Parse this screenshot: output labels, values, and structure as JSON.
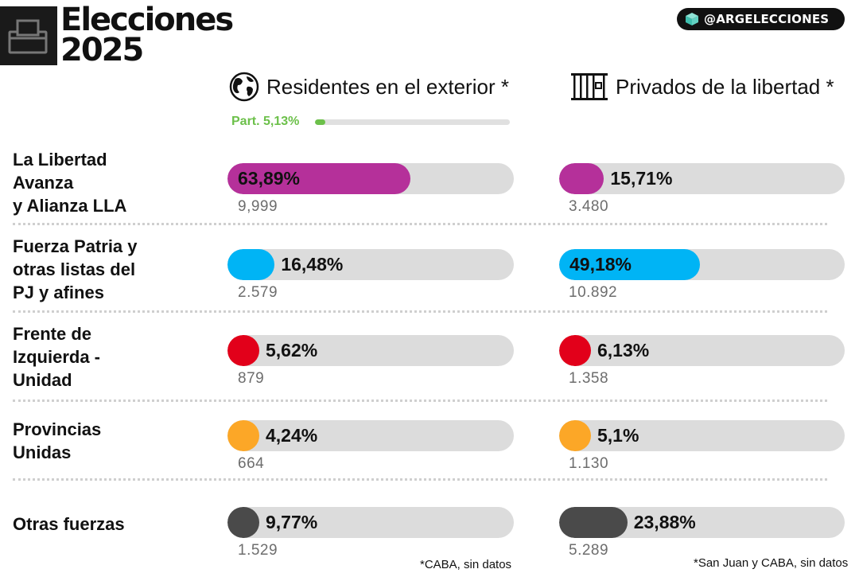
{
  "header": {
    "title_line1": "Elecciones",
    "title_line2": "2025",
    "handle": "@ARGELECCIONES",
    "logo_icon": "ballot-box-icon",
    "handle_icon": "cube-icon"
  },
  "columns": [
    {
      "title": "Residentes en el exterior *",
      "icon": "globe-icon",
      "participation": "Part. 5,13%",
      "participation_value": 5.13,
      "footnote": "*CABA, sin datos"
    },
    {
      "title": "Privados de la libertad *",
      "icon": "prison-bars-icon",
      "footnote": "*San Juan y CABA, sin datos"
    }
  ],
  "parties": [
    {
      "name": "La Libertad Avanza y Alianza LLA",
      "lines": [
        "La Libertad",
        "Avanza",
        "y Alianza LLA"
      ],
      "color": "#b5309a",
      "exterior_pct": "63,89%",
      "exterior_votes": "9,999",
      "privados_pct": "15,71%",
      "privados_votes": "3.480"
    },
    {
      "name": "Fuerza Patria y otras listas del PJ y afines",
      "lines": [
        "Fuerza Patria y",
        "otras listas del",
        "PJ y afines"
      ],
      "color": "#00b4f5",
      "exterior_pct": "16,48%",
      "exterior_votes": "2.579",
      "privados_pct": "49,18%",
      "privados_votes": "10.892"
    },
    {
      "name": "Frente de Izquierda - Unidad",
      "lines": [
        "Frente de",
        "Izquierda -",
        "Unidad"
      ],
      "color": "#e2001a",
      "exterior_pct": "5,62%",
      "exterior_votes": "879",
      "privados_pct": "6,13%",
      "privados_votes": "1.358"
    },
    {
      "name": "Provincias Unidas",
      "lines": [
        "Provincias",
        "Unidas"
      ],
      "color": "#fca727",
      "exterior_pct": "4,24%",
      "exterior_votes": "664",
      "privados_pct": "5,1%",
      "privados_votes": "1.130"
    },
    {
      "name": "Otras fuerzas",
      "lines": [
        "Otras fuerzas"
      ],
      "color": "#4a4a4a",
      "exterior_pct": "9,77%",
      "exterior_votes": "1.529",
      "privados_pct": "23,88%",
      "privados_votes": "5.289"
    }
  ],
  "chart_data": {
    "type": "bar",
    "orientation": "horizontal",
    "categories": [
      "La Libertad Avanza y Alianza LLA",
      "Fuerza Patria y otras listas del PJ y afines",
      "Frente de Izquierda - Unidad",
      "Provincias Unidas",
      "Otras fuerzas"
    ],
    "series": [
      {
        "name": "Residentes en el exterior *",
        "values": [
          63.89,
          16.48,
          5.62,
          4.24,
          9.77
        ],
        "votes": [
          9999,
          2579,
          879,
          664,
          1529
        ]
      },
      {
        "name": "Privados de la libertad *",
        "values": [
          15.71,
          49.18,
          6.13,
          5.1,
          23.88
        ],
        "votes": [
          3480,
          10892,
          1358,
          1130,
          5289
        ]
      }
    ],
    "xlim": [
      0,
      100
    ],
    "participation": {
      "Residentes en el exterior *": 5.13
    },
    "title": "Elecciones 2025"
  }
}
